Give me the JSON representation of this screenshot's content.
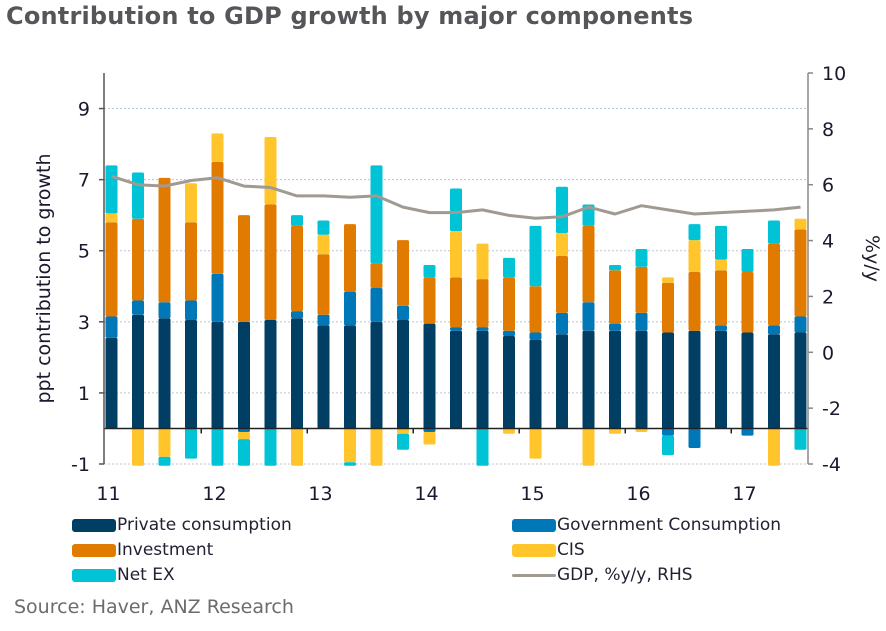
{
  "title": "Contribution to GDP growth by major components",
  "source": "Source: Haver, ANZ Research",
  "chart_data": {
    "type": "bar",
    "stacked": true,
    "title": "Contribution to GDP growth by major components",
    "xlabel": "",
    "ylabel": "ppt contribution to growth",
    "y2label": "%y/y",
    "ylim": [
      -1,
      10
    ],
    "y2lim": [
      -4,
      10
    ],
    "yticks": [
      9,
      7,
      5,
      3,
      1,
      -1
    ],
    "y2ticks": [
      10,
      8,
      6,
      4,
      2,
      0,
      -2,
      -4
    ],
    "grid": true,
    "legend_position": "bottom",
    "year_labels": [
      "11",
      "12",
      "13",
      "14",
      "15",
      "16",
      "17"
    ],
    "categories": [
      "2011Q1",
      "2011Q2",
      "2011Q3",
      "2011Q4",
      "2012Q1",
      "2012Q2",
      "2012Q3",
      "2012Q4",
      "2013Q1",
      "2013Q2",
      "2013Q3",
      "2013Q4",
      "2014Q1",
      "2014Q2",
      "2014Q3",
      "2014Q4",
      "2015Q1",
      "2015Q2",
      "2015Q3",
      "2015Q4",
      "2016Q1",
      "2016Q2",
      "2016Q3",
      "2016Q4",
      "2017Q1",
      "2017Q2",
      "2017Q3"
    ],
    "series": [
      {
        "name": "Private consumption",
        "color": "#003f63",
        "axis": "left",
        "kind": "bar",
        "values": [
          2.55,
          3.2,
          3.1,
          3.05,
          3.0,
          3.0,
          3.05,
          3.1,
          2.9,
          2.9,
          3.0,
          3.05,
          2.95,
          2.75,
          2.75,
          2.6,
          2.5,
          2.65,
          2.75,
          2.75,
          2.75,
          2.7,
          2.75,
          2.75,
          2.7,
          2.65,
          2.7
        ]
      },
      {
        "name": "Government Consumption",
        "color": "#0077b6",
        "axis": "left",
        "kind": "bar",
        "values": [
          0.6,
          0.4,
          0.45,
          0.55,
          1.35,
          -0.1,
          0.0,
          0.2,
          0.3,
          0.95,
          0.95,
          0.4,
          -0.1,
          0.1,
          0.1,
          0.15,
          0.2,
          0.6,
          0.8,
          0.2,
          0.5,
          -0.2,
          -0.55,
          0.15,
          -0.2,
          0.25,
          0.45
        ]
      },
      {
        "name": "Investment",
        "color": "#e07b00",
        "axis": "left",
        "kind": "bar",
        "values": [
          2.65,
          2.3,
          3.5,
          2.2,
          3.15,
          3.0,
          3.25,
          2.4,
          1.7,
          1.9,
          0.7,
          1.85,
          1.3,
          1.4,
          1.35,
          1.5,
          1.3,
          1.6,
          2.15,
          1.5,
          1.3,
          1.4,
          1.65,
          1.55,
          1.7,
          2.3,
          2.45
        ]
      },
      {
        "name": "CIS",
        "color": "#ffc52a",
        "axis": "left",
        "kind": "bar",
        "values": [
          0.25,
          -1.05,
          -0.8,
          1.1,
          0.8,
          -0.2,
          1.9,
          -1.05,
          0.55,
          -0.95,
          -1.05,
          -0.15,
          -0.35,
          1.3,
          1.0,
          -0.15,
          -0.85,
          0.65,
          -1.05,
          -0.15,
          -0.1,
          0.15,
          0.9,
          0.3,
          0.0,
          -1.05,
          0.3
        ]
      },
      {
        "name": "Net EX",
        "color": "#00c3d6",
        "axis": "left",
        "kind": "bar",
        "values": [
          1.35,
          1.3,
          -0.25,
          -0.85,
          -1.05,
          -0.75,
          -1.05,
          0.3,
          0.4,
          -0.1,
          2.75,
          -0.45,
          0.35,
          1.2,
          -1.05,
          0.55,
          1.7,
          1.3,
          0.6,
          0.15,
          0.5,
          -0.55,
          0.45,
          0.95,
          0.65,
          0.65,
          -0.6
        ]
      },
      {
        "name": "GDP, %y/y, RHS",
        "color": "#a09a92",
        "axis": "right",
        "kind": "line",
        "values": [
          6.3,
          6.0,
          5.95,
          6.15,
          6.25,
          5.95,
          5.9,
          5.6,
          5.6,
          5.55,
          5.6,
          5.2,
          5.0,
          5.0,
          5.1,
          4.9,
          4.8,
          4.85,
          5.2,
          4.95,
          5.25,
          5.1,
          4.95,
          5.0,
          5.05,
          5.1,
          5.2
        ]
      }
    ],
    "legend": [
      {
        "label": "Private consumption",
        "color": "#003f63",
        "kind": "bar"
      },
      {
        "label": "Government Consumption",
        "color": "#0077b6",
        "kind": "bar"
      },
      {
        "label": "Investment",
        "color": "#e07b00",
        "kind": "bar"
      },
      {
        "label": "CIS",
        "color": "#ffc52a",
        "kind": "bar"
      },
      {
        "label": "Net EX",
        "color": "#00c3d6",
        "kind": "bar"
      },
      {
        "label": "GDP, %y/y, RHS",
        "color": "#a09a92",
        "kind": "line"
      }
    ]
  }
}
